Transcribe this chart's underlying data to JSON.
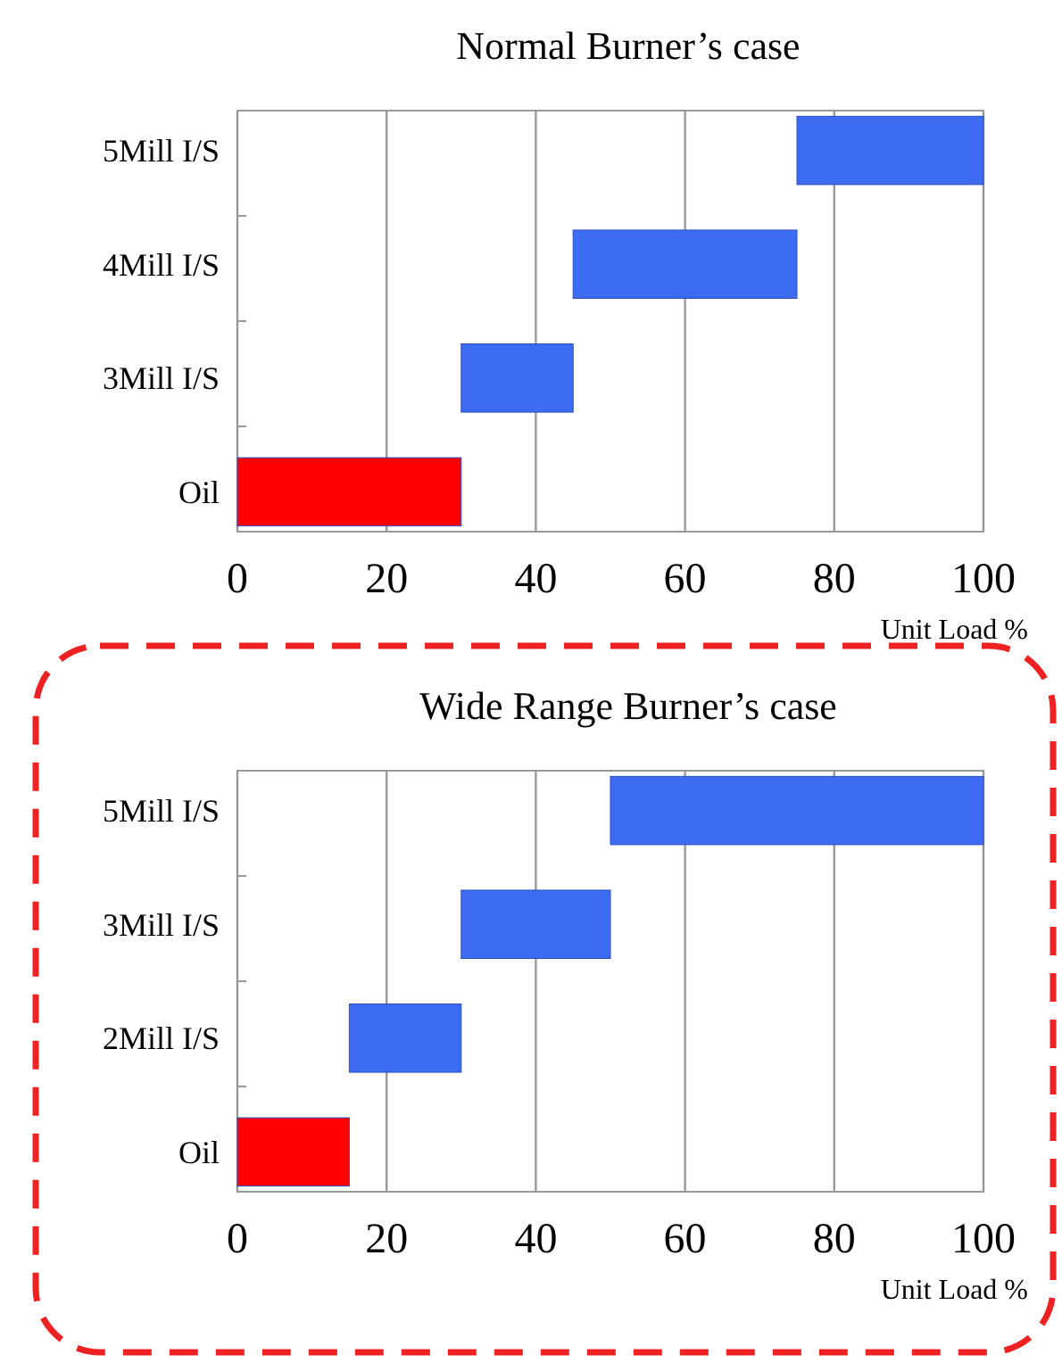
{
  "chart_data": [
    {
      "type": "bar",
      "orientation": "horizontal",
      "title": "Normal Burner’s case",
      "xlabel": "Unit Load %",
      "categories": [
        "5Mill I/S",
        "4Mill I/S",
        "3Mill I/S",
        "Oil"
      ],
      "base": [
        75,
        45,
        30,
        0
      ],
      "values": [
        25,
        30,
        15,
        30
      ],
      "colors": [
        "#3d6cf2",
        "#3d6cf2",
        "#3d6cf2",
        "#ff0000"
      ],
      "xlim": [
        0,
        100
      ],
      "xticks": [
        0,
        20,
        40,
        60,
        80,
        100
      ],
      "grid": "x"
    },
    {
      "type": "bar",
      "orientation": "horizontal",
      "title": "Wide Range Burner’s case",
      "xlabel": "Unit Load %",
      "categories": [
        "5Mill I/S",
        "3Mill I/S",
        "2Mill I/S",
        "Oil"
      ],
      "base": [
        50,
        30,
        15,
        0
      ],
      "values": [
        50,
        20,
        15,
        15
      ],
      "colors": [
        "#3d6cf2",
        "#3d6cf2",
        "#3d6cf2",
        "#ff0000"
      ],
      "xlim": [
        0,
        100
      ],
      "xticks": [
        0,
        20,
        40,
        60,
        80,
        100
      ],
      "grid": "x"
    }
  ]
}
